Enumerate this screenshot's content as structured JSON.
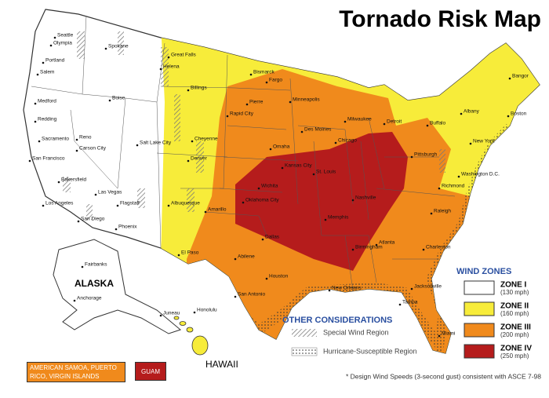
{
  "title": "Tornado Risk Map",
  "legend": {
    "title": "WIND ZONES",
    "zones": [
      {
        "name": "ZONE I",
        "speed": "(130 mph)",
        "color": "#ffffff"
      },
      {
        "name": "ZONE II",
        "speed": "(160 mph)",
        "color": "#f7ec3a"
      },
      {
        "name": "ZONE III",
        "speed": "(200 mph)",
        "color": "#f08a1c"
      },
      {
        "name": "ZONE IV",
        "speed": "(250 mph)",
        "color": "#b51c1c"
      }
    ]
  },
  "other": {
    "title": "OTHER CONSIDERATIONS",
    "items": [
      "Special Wind Region",
      "Hurricane-Susceptible Region"
    ]
  },
  "regions": [
    "ALASKA",
    "HAWAII"
  ],
  "territories": [
    "AMERICAN SAMOA, PUERTO RICO, VIRGIN ISLANDS",
    "GUAM"
  ],
  "footnote": "* Design Wind Speeds (3-second gust) consistent with ASCE 7-98",
  "cities": [
    "Seattle",
    "Olympia",
    "Spokane",
    "Portland",
    "Salem",
    "Medford",
    "Boise",
    "Redding",
    "Reno",
    "Carson City",
    "Sacramento",
    "San Francisco",
    "Las Vegas",
    "Bakersfield",
    "Los Angeles",
    "San Diego",
    "Phoenix",
    "Flagstaff",
    "Salt Lake City",
    "Great Falls",
    "Helena",
    "Billings",
    "Cheyenne",
    "Denver",
    "Albuquerque",
    "El Paso",
    "Bismarck",
    "Fargo",
    "Pierre",
    "Rapid City",
    "Omaha",
    "Minneapolis",
    "Des Moines",
    "Chicago",
    "Milwaukee",
    "Detroit",
    "St. Louis",
    "Kansas City",
    "Wichita",
    "Oklahoma City",
    "Amarillo",
    "Abilene",
    "Dallas",
    "Houston",
    "San Antonio",
    "New Orleans",
    "Memphis",
    "Nashville",
    "Atlanta",
    "Birmingham",
    "Jacksonville",
    "Tampa",
    "Miami",
    "Charleston",
    "Raleigh",
    "Richmond",
    "Washington D.C.",
    "New York",
    "Boston",
    "Albany",
    "Buffalo",
    "Bangor",
    "Pittsburgh",
    "Fairbanks",
    "Anchorage",
    "Juneau",
    "Honolulu"
  ]
}
